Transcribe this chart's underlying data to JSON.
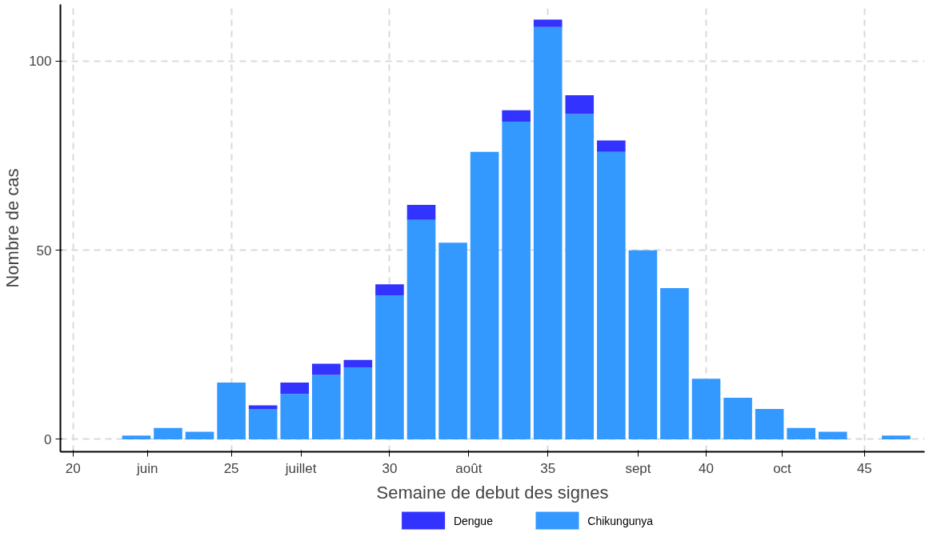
{
  "chart_data": {
    "type": "bar",
    "stacked": true,
    "xlabel": "Semaine de debut des signes",
    "ylabel": "Nombre de cas",
    "x": [
      22,
      23,
      24,
      25,
      26,
      27,
      28,
      29,
      30,
      31,
      32,
      33,
      34,
      35,
      36,
      37,
      38,
      39,
      40,
      41,
      42,
      43,
      44,
      45,
      46
    ],
    "series": [
      {
        "name": "Chikungunya",
        "color": "#3399ff",
        "values": [
          1,
          3,
          2,
          15,
          8,
          12,
          17,
          19,
          38,
          58,
          52,
          76,
          84,
          109,
          86,
          76,
          50,
          40,
          16,
          11,
          8,
          3,
          2,
          0,
          1
        ]
      },
      {
        "name": "Dengue",
        "color": "#3333ff",
        "values": [
          0,
          0,
          0,
          0,
          1,
          3,
          3,
          2,
          3,
          4,
          0,
          0,
          3,
          2,
          5,
          3,
          0,
          0,
          0,
          0,
          0,
          0,
          0,
          0,
          0
        ]
      }
    ],
    "xlim": [
      19.6,
      46.9
    ],
    "ylim": [
      -3.3,
      115
    ],
    "xticks": [
      20,
      {
        "value": 22.35,
        "label": "juin"
      },
      25,
      {
        "value": 27.2,
        "label": "juillet"
      },
      30,
      {
        "value": 32.5,
        "label": "août"
      },
      35,
      {
        "value": 37.85,
        "label": "sept"
      },
      40,
      {
        "value": 42.4,
        "label": "oct"
      },
      45
    ],
    "yticks": [
      0,
      50,
      100
    ],
    "grid": true,
    "legend": "bottom"
  }
}
